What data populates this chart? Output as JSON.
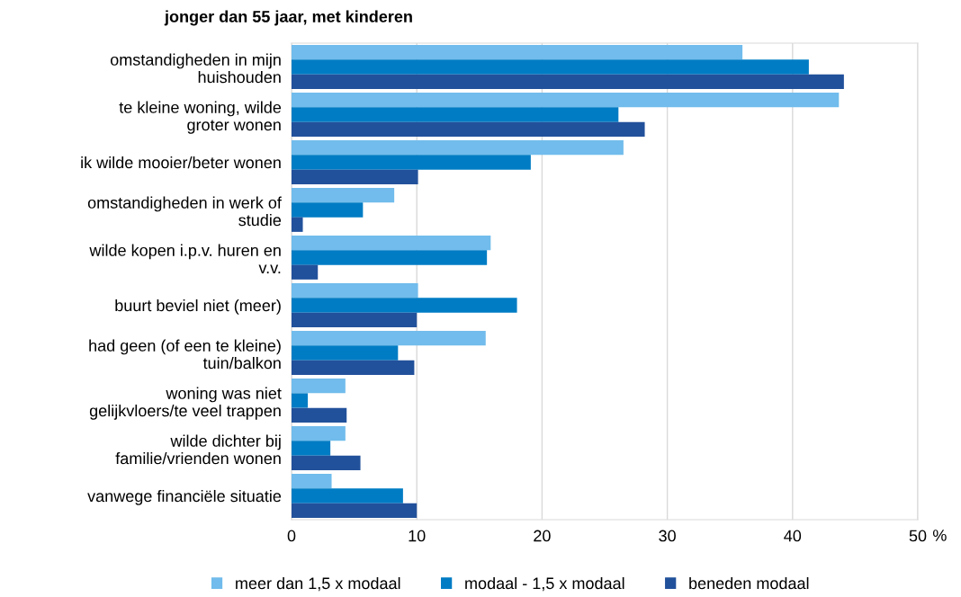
{
  "chart_data": {
    "type": "bar",
    "orientation": "horizontal",
    "title": "jonger dan 55 jaar, met kinderen",
    "categories": [
      "omstandigheden in mijn huishouden",
      "te kleine woning, wilde groter wonen",
      "ik wilde mooier/beter wonen",
      "omstandigheden in werk of studie",
      "wilde kopen i.p.v. huren en v.v.",
      "buurt beviel niet (meer)",
      "had geen (of een te kleine) tuin/balkon",
      "woning was niet gelijkvloers/te veel trappen",
      "wilde dichter bij familie/vrienden wonen",
      "vanwege financiële situatie"
    ],
    "series": [
      {
        "name": "meer dan 1,5 x modaal",
        "color": "#71bcec",
        "values": [
          36.0,
          43.7,
          26.5,
          8.2,
          15.9,
          10.1,
          15.5,
          4.3,
          4.3,
          3.2
        ]
      },
      {
        "name": "modaal - 1,5 x modaal",
        "color": "#007cc4",
        "values": [
          41.3,
          26.1,
          19.1,
          5.7,
          15.6,
          18.0,
          8.5,
          1.3,
          3.1,
          8.9
        ]
      },
      {
        "name": "beneden modaal",
        "color": "#22519b",
        "values": [
          44.1,
          28.2,
          10.1,
          0.9,
          2.1,
          10.0,
          9.8,
          4.4,
          5.5,
          10.0
        ]
      }
    ],
    "xlim": [
      0,
      50
    ],
    "xticks": [
      0,
      10,
      20,
      30,
      40,
      50
    ],
    "xlabel": "%",
    "grid": "x",
    "legend": "bottom"
  }
}
